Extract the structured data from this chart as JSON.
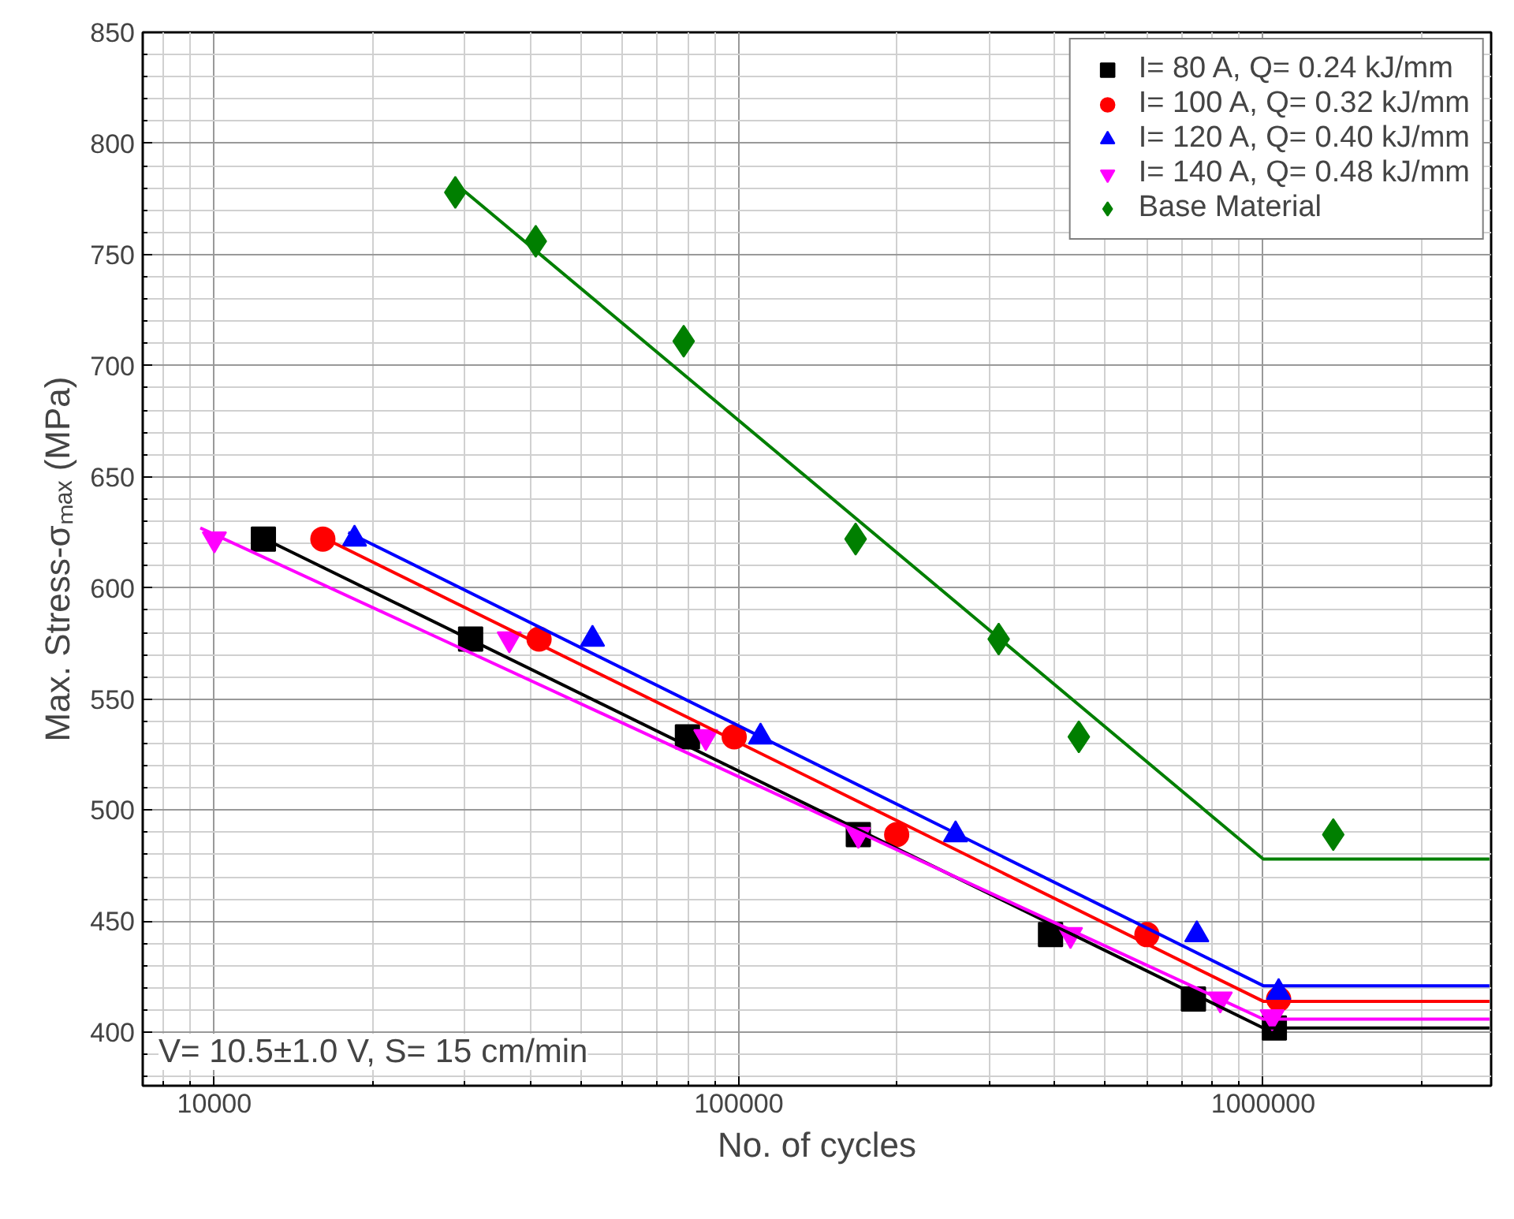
{
  "chart_data": {
    "type": "scatter",
    "xlabel": "No. of cycles",
    "ylabel": "Max. Stress-σₘₐₓ (MPa)",
    "log": "x",
    "grid": true,
    "legend": "top right",
    "xlim": [
      7300,
      2720000
    ],
    "xticks": [
      10000,
      100000,
      1000000
    ],
    "ylim": [
      376,
      850
    ],
    "yticks": [
      400,
      450,
      500,
      550,
      600,
      650,
      700,
      750,
      800,
      850
    ],
    "annotations": [
      "V= 10.5±1.0 V, S= 15 cm/min"
    ],
    "series": [
      {
        "name": "I= 80 A, Q= 0.24 kJ/mm",
        "color": "#000000",
        "marker": "square",
        "x": [
          12400,
          30800,
          79800,
          169000,
          393000,
          736000,
          1050000
        ],
        "values": [
          622,
          577,
          533,
          489,
          444,
          415,
          402
        ]
      },
      {
        "name": "I= 100 A, Q= 0.32 kJ/mm",
        "color": "#ff0000",
        "marker": "circle",
        "x": [
          16100,
          41600,
          98000,
          200000,
          600000,
          1070000
        ],
        "values": [
          622,
          577,
          533,
          489,
          444,
          415
        ]
      },
      {
        "name": "I= 120 A, Q= 0.40 kJ/mm",
        "color": "#0000ff",
        "marker": "triangle",
        "x": [
          18500,
          52600,
          110000,
          259000,
          747000,
          1070000
        ],
        "values": [
          622,
          577,
          533,
          489,
          444,
          418
        ]
      },
      {
        "name": "I= 140 A, Q= 0.48 kJ/mm",
        "color": "#ff00ff",
        "marker": "triangle",
        "x": [
          10000,
          36500,
          86500,
          169000,
          429000,
          828000,
          1040000
        ],
        "values": [
          622,
          577,
          533,
          489,
          444,
          415,
          407
        ]
      },
      {
        "name": "Base Material",
        "color": "#007f00",
        "marker": "diamond",
        "x": [
          28800,
          41000,
          78500,
          167000,
          313000,
          445000,
          1360000
        ],
        "values": [
          778,
          756,
          711,
          622,
          577,
          533,
          489
        ]
      },
      {
        "type": "line",
        "color": "#000000",
        "x": [
          12000,
          1000000,
          2700000
        ],
        "values": [
          624,
          402,
          402
        ]
      },
      {
        "type": "line",
        "color": "#ff0000",
        "x": [
          16000,
          1000000,
          2700000
        ],
        "values": [
          623,
          414,
          414
        ]
      },
      {
        "type": "line",
        "color": "#0000ff",
        "x": [
          18000,
          1000000,
          2700000
        ],
        "values": [
          625,
          421,
          421
        ]
      },
      {
        "type": "line",
        "color": "#ff00ff",
        "x": [
          9400,
          1000000,
          2700000
        ],
        "values": [
          627,
          406,
          406
        ]
      },
      {
        "type": "line",
        "color": "#007f00",
        "x": [
          28800,
          1000000,
          2700000
        ],
        "values": [
          782,
          478,
          478
        ]
      }
    ]
  }
}
